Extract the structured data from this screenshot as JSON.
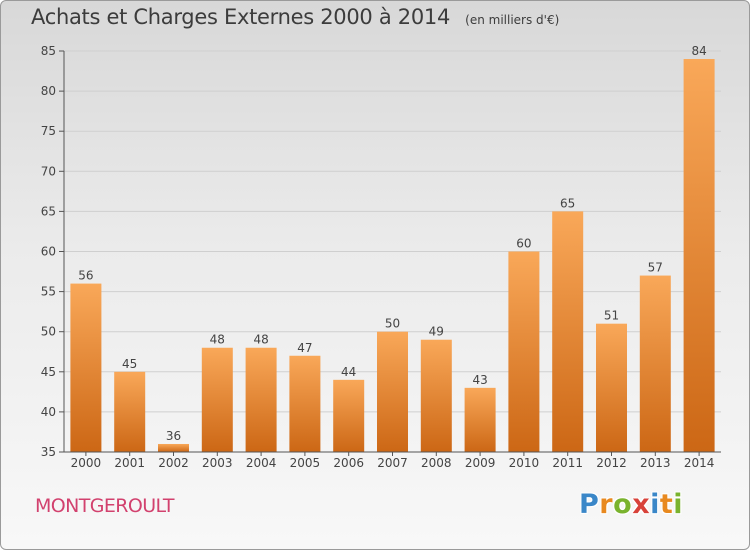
{
  "header": {
    "title": "Achats et Charges Externes 2000 à 2014",
    "subtitle": "(en milliers d'€)"
  },
  "footer": {
    "commune": "MONTGEROULT",
    "logo": {
      "letters": [
        "P",
        "r",
        "o",
        "x",
        "i",
        "t",
        "i"
      ],
      "colors": [
        "#3a87c8",
        "#e8891f",
        "#7ab32e",
        "#d8423a",
        "#3a87c8",
        "#e8891f",
        "#7ab32e"
      ]
    }
  },
  "chart_data": {
    "type": "bar",
    "title": "Achats et Charges Externes 2000 à 2014",
    "subtitle": "(en milliers d'€)",
    "categories": [
      "2000",
      "2001",
      "2002",
      "2003",
      "2004",
      "2005",
      "2006",
      "2007",
      "2008",
      "2009",
      "2010",
      "2011",
      "2012",
      "2013",
      "2014"
    ],
    "values": [
      56,
      45,
      36,
      48,
      48,
      47,
      44,
      50,
      49,
      43,
      60,
      65,
      51,
      57,
      84
    ],
    "ylim": [
      35,
      85
    ],
    "yticks": [
      35,
      40,
      45,
      50,
      55,
      60,
      65,
      70,
      75,
      80,
      85
    ],
    "grid": true,
    "data_labels": true,
    "bar_colors": {
      "light": "#f9a859",
      "dark": "#cc6715"
    },
    "axis_color": "#555555",
    "grid_color": "#cfcfcf"
  }
}
